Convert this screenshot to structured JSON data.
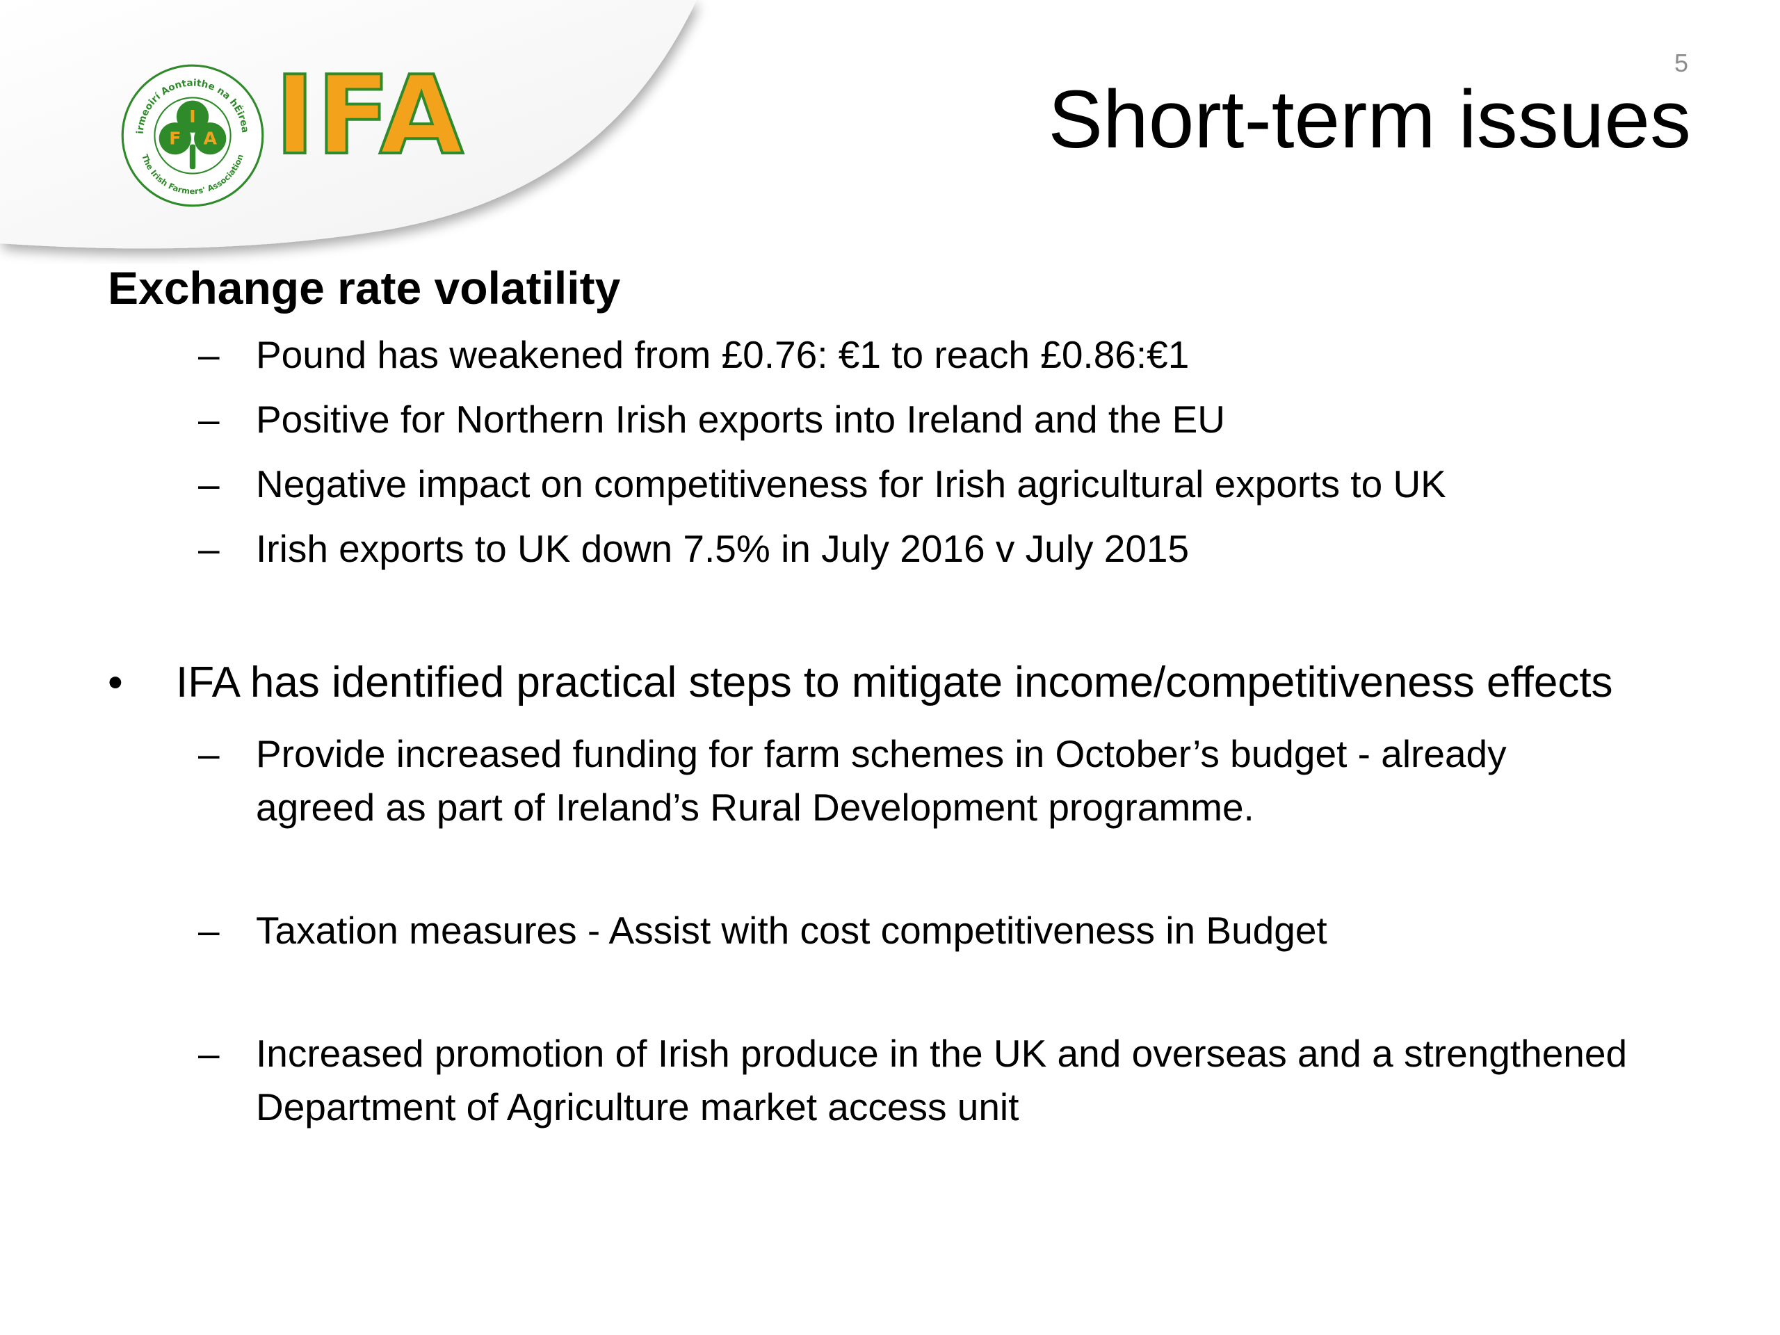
{
  "slide": {
    "number": "5",
    "title": "Short-term issues"
  },
  "logo": {
    "wordmark": "IFA",
    "seal_letters": [
      "F",
      "I",
      "A"
    ],
    "seal_text_top": "Feirmeoirí Aontaithe na hÉireann",
    "seal_text_bottom": "The Irish Farmers' Association",
    "colors": {
      "orange": "#f2a31b",
      "green": "#2f8a2a"
    }
  },
  "section": {
    "heading": "Exchange rate volatility",
    "items": [
      {
        "dash": "–",
        "text": "Pound has weakened from £0.76: €1 to reach £0.86:€1"
      },
      {
        "dash": "–",
        "text": "Positive for Northern Irish exports into Ireland and the EU"
      },
      {
        "dash": "–",
        "text": "Negative impact on competitiveness for Irish agricultural exports to UK"
      },
      {
        "dash": "–",
        "text": "Irish exports to UK down 7.5% in July 2016 v July 2015"
      }
    ]
  },
  "bullet": {
    "marker": "•",
    "text": "IFA has identified practical steps to mitigate income/competitiveness effects",
    "items": [
      {
        "dash": "–",
        "text": "Provide increased funding for farm schemes in October’s budget - already agreed as part of Ireland’s Rural Development programme."
      },
      {
        "dash": "–",
        "text": "Taxation measures - Assist with cost competitiveness in Budget"
      },
      {
        "dash": "–",
        "text": "Increased promotion of Irish produce  in the UK and overseas and a strengthened Department of Agriculture market access unit"
      }
    ]
  }
}
